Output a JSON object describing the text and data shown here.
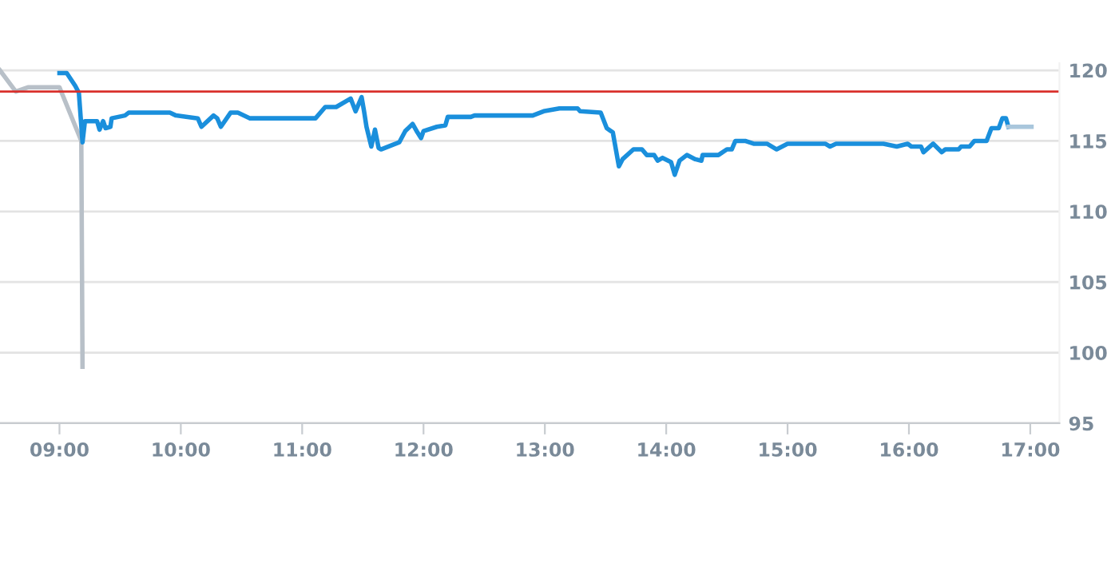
{
  "chart_data": {
    "type": "line",
    "grid": "y",
    "xlim": [
      8.51,
      17.24
    ],
    "ylim": [
      95,
      120.5
    ],
    "xticks": [
      {
        "value": 9,
        "label": "09:00"
      },
      {
        "value": 10,
        "label": "10:00"
      },
      {
        "value": 11,
        "label": "11:00"
      },
      {
        "value": 12,
        "label": "12:00"
      },
      {
        "value": 13,
        "label": "13:00"
      },
      {
        "value": 14,
        "label": "14:00"
      },
      {
        "value": 15,
        "label": "15:00"
      },
      {
        "value": 16,
        "label": "16:00"
      },
      {
        "value": 17,
        "label": "17:00"
      }
    ],
    "yticks": [
      95,
      100,
      105,
      110,
      115,
      120
    ],
    "ref_lines": [
      {
        "axis": "y",
        "value": 118.5,
        "color": "#d9302c"
      }
    ],
    "series": [
      {
        "color": "#b8c0c8",
        "x": [
          8.51,
          8.64,
          8.74,
          9.0,
          9.18,
          9.19
        ],
        "values": [
          120,
          118.5,
          118.8,
          118.8,
          115.0,
          99.0
        ]
      },
      {
        "color": "#1a8fdc",
        "x": [
          9.0,
          9.06,
          9.13,
          9.16,
          9.19,
          9.21,
          9.31,
          9.33,
          9.36,
          9.38,
          9.42,
          9.43,
          9.54,
          9.57,
          9.61,
          9.91,
          9.96,
          10.14,
          10.17,
          10.27,
          10.3,
          10.33,
          10.41,
          10.47,
          10.57,
          11.11,
          11.19,
          11.28,
          11.4,
          11.44,
          11.49,
          11.51,
          11.53,
          11.57,
          11.6,
          11.63,
          11.65,
          11.8,
          11.85,
          11.91,
          11.95,
          11.98,
          12.0,
          12.11,
          12.18,
          12.2,
          12.39,
          12.42,
          12.9,
          12.99,
          13.12,
          13.27,
          13.29,
          13.46,
          13.51,
          13.56,
          13.61,
          13.64,
          13.73,
          13.8,
          13.84,
          13.9,
          13.93,
          13.97,
          14.04,
          14.07,
          14.11,
          14.17,
          14.24,
          14.29,
          14.3,
          14.43,
          14.5,
          14.54,
          14.57,
          14.65,
          14.72,
          14.83,
          14.91,
          15.0,
          15.31,
          15.35,
          15.4,
          15.79,
          15.9,
          15.99,
          16.02,
          16.1,
          16.12,
          16.2,
          16.27,
          16.3,
          16.41,
          16.43,
          16.5,
          16.54,
          16.64,
          16.68,
          16.74,
          16.77,
          16.8,
          16.82
        ],
        "values": [
          119.8,
          119.8,
          118.9,
          118.4,
          114.9,
          116.4,
          116.4,
          115.8,
          116.4,
          115.9,
          116.0,
          116.6,
          116.8,
          117.0,
          117.0,
          117.0,
          116.8,
          116.6,
          116.0,
          116.8,
          116.6,
          116.0,
          117.0,
          117.0,
          116.6,
          116.6,
          117.4,
          117.4,
          118.0,
          117.1,
          118.1,
          117.1,
          116.0,
          114.6,
          115.8,
          114.5,
          114.4,
          114.9,
          115.7,
          116.2,
          115.6,
          115.2,
          115.7,
          116.0,
          116.1,
          116.7,
          116.7,
          116.8,
          116.8,
          117.1,
          117.3,
          117.3,
          117.1,
          117.0,
          115.9,
          115.6,
          113.2,
          113.7,
          114.4,
          114.4,
          114.0,
          114.0,
          113.6,
          113.8,
          113.5,
          112.6,
          113.6,
          114.0,
          113.7,
          113.6,
          114.0,
          114.0,
          114.4,
          114.4,
          115.0,
          115.0,
          114.8,
          114.8,
          114.4,
          114.8,
          114.8,
          114.6,
          114.8,
          114.8,
          114.6,
          114.8,
          114.6,
          114.6,
          114.2,
          114.8,
          114.2,
          114.4,
          114.4,
          114.6,
          114.6,
          115.0,
          115.0,
          115.9,
          115.9,
          116.6,
          116.6,
          116.0
        ]
      },
      {
        "color": "#a9c6dc",
        "x": [
          16.82,
          17.01
        ],
        "values": [
          116.0,
          116.0
        ]
      }
    ]
  }
}
